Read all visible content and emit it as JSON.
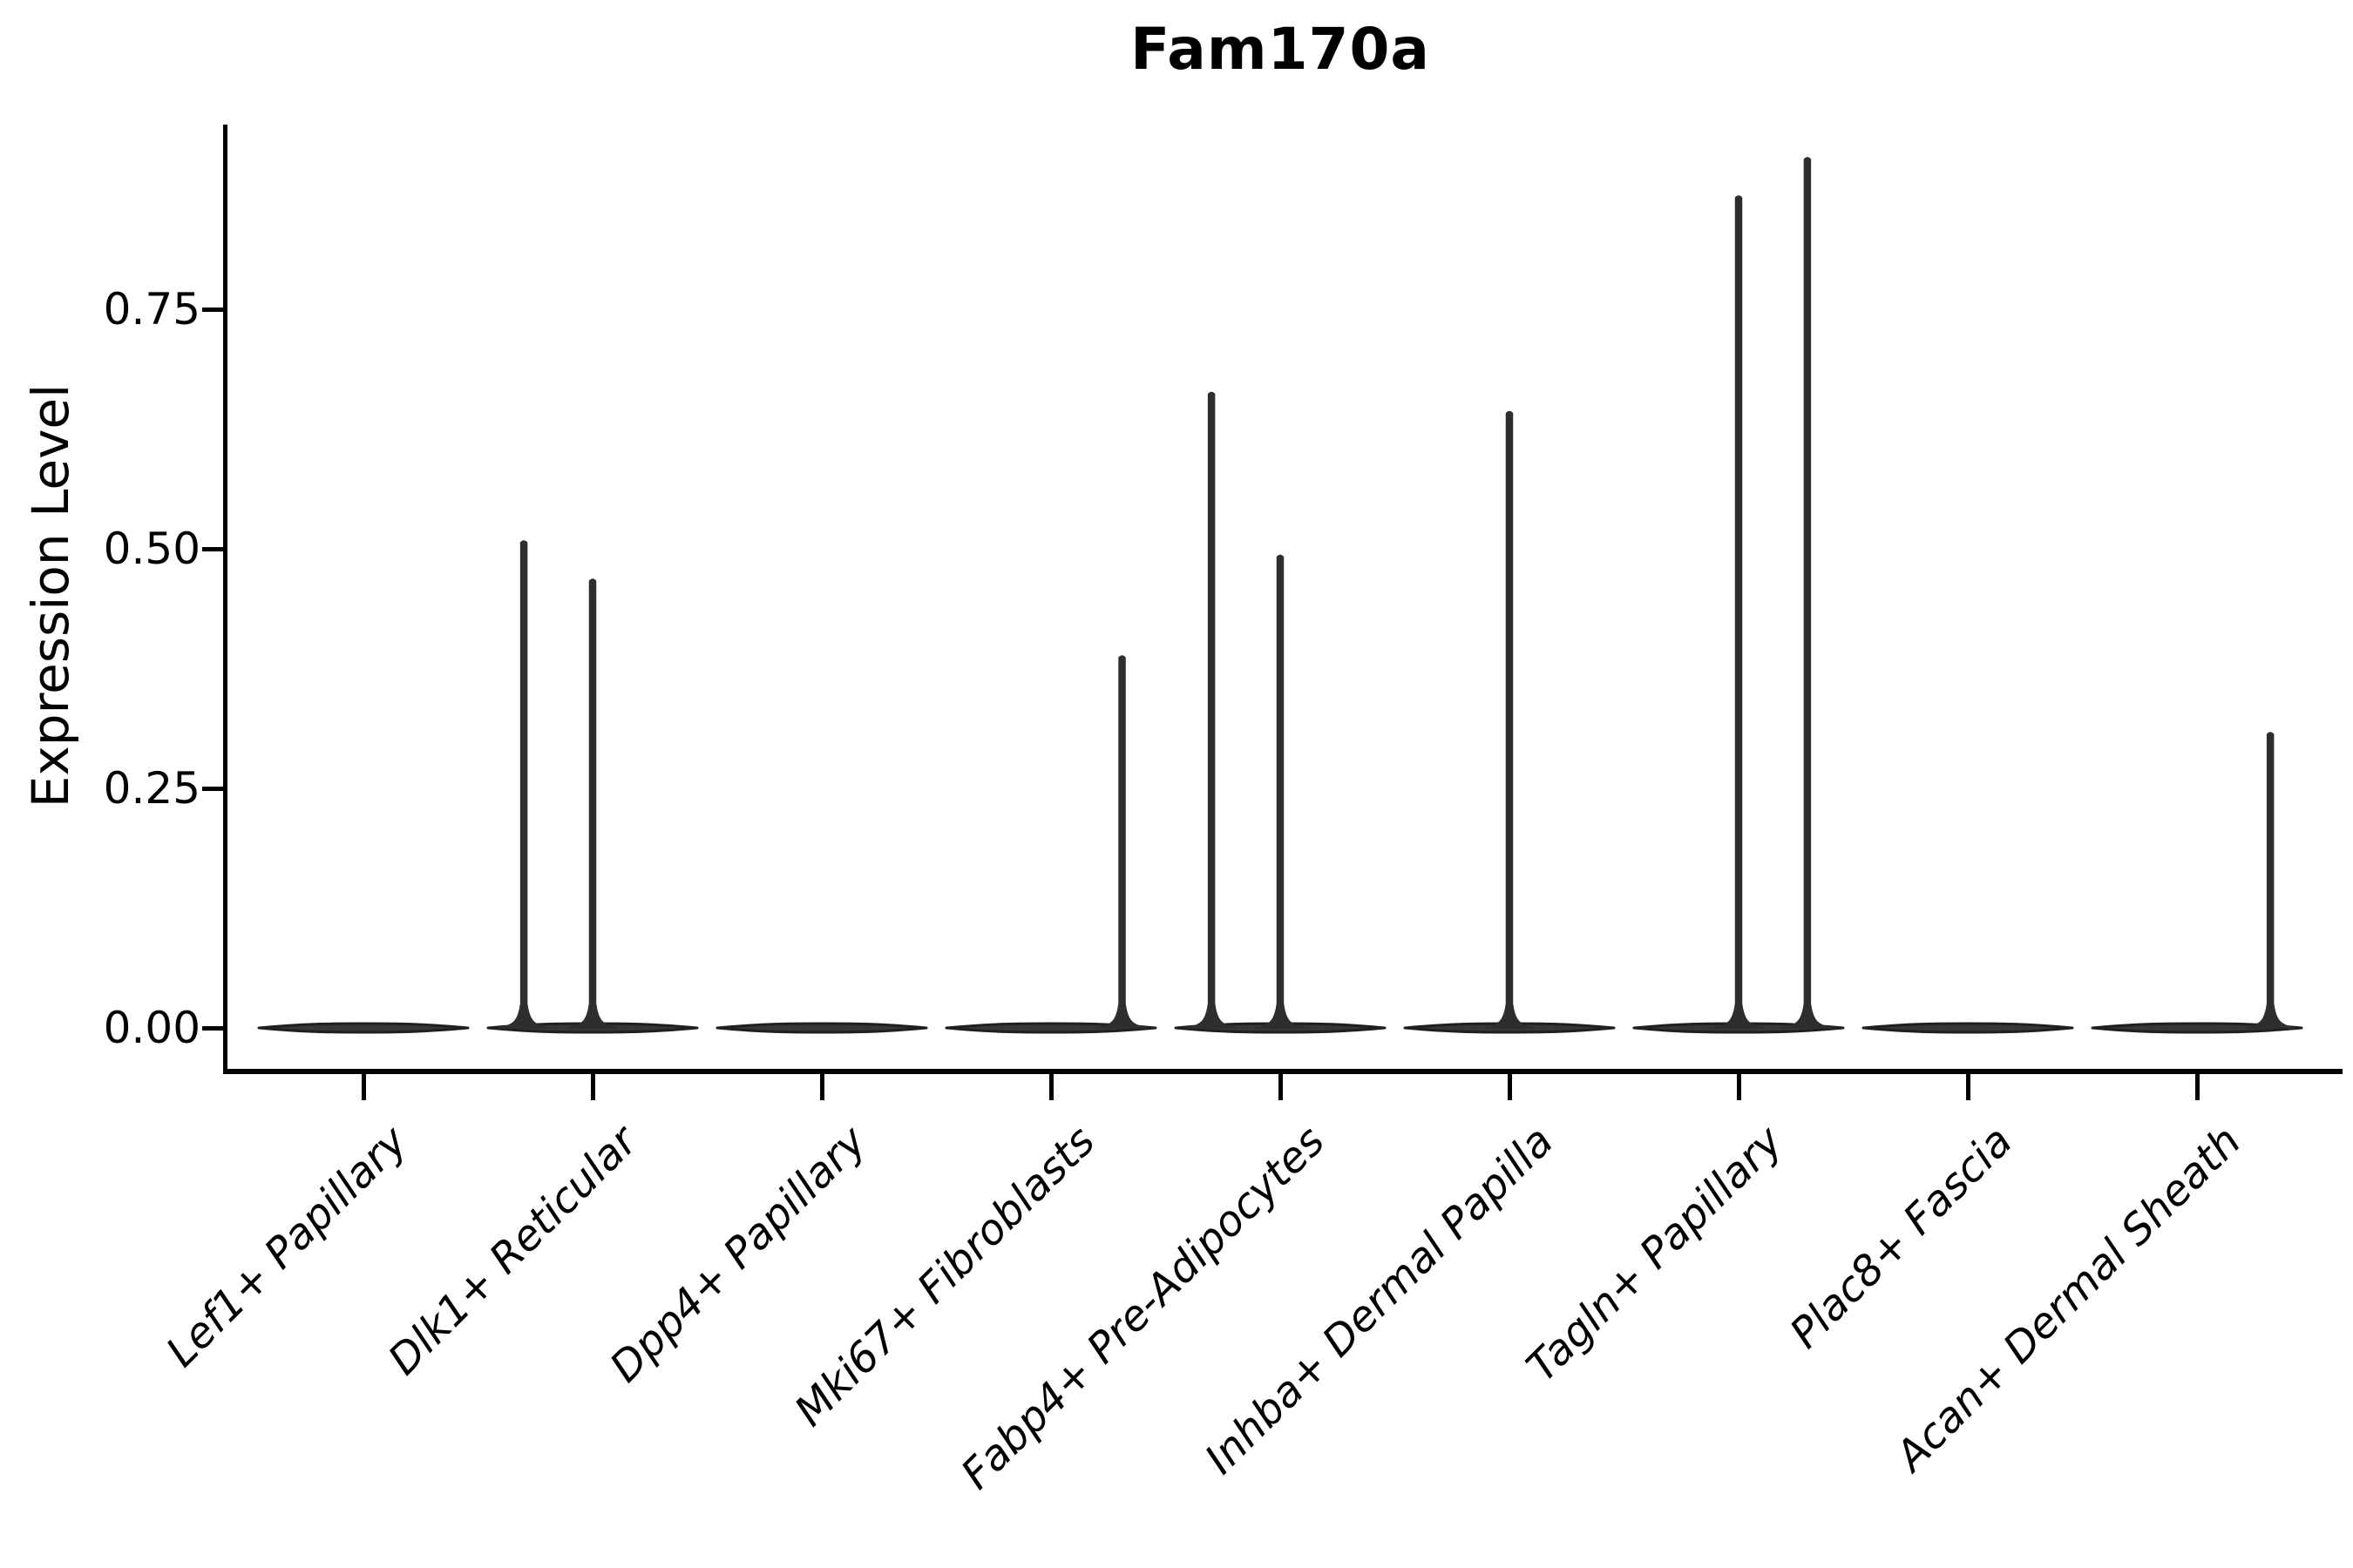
{
  "chart_data": {
    "type": "violin",
    "title": "Fam170a",
    "xlabel": "",
    "ylabel": "Expression Level",
    "grid": false,
    "legend_position": "none",
    "ylim": [
      -0.043,
      0.943
    ],
    "yticks": [
      {
        "value": 0.0,
        "label": "0.00"
      },
      {
        "value": 0.25,
        "label": "0.25"
      },
      {
        "value": 0.5,
        "label": "0.50"
      },
      {
        "value": 0.75,
        "label": "0.75"
      }
    ],
    "categories": [
      "Lef1+ Papillary",
      "Dlk1+ Reticular",
      "Dpp4+ Papillary",
      "Mki67+ Fibroblasts",
      "Fabp4+ Pre-Adipocytes",
      "Inhba+ Dermal Papilla",
      "Tagln+ Papillary",
      "Plac8+ Fascia",
      "Acan+ Dermal Sheath"
    ],
    "series": [
      {
        "name": "Lef1+ Papillary",
        "baseline_value": 0,
        "spikes": []
      },
      {
        "name": "Dlk1+ Reticular",
        "baseline_value": 0,
        "spikes": [
          {
            "offset_frac": -0.3,
            "value": 0.51
          },
          {
            "offset_frac": 0.0,
            "value": 0.47
          }
        ]
      },
      {
        "name": "Dpp4+ Papillary",
        "baseline_value": 0,
        "spikes": []
      },
      {
        "name": "Mki67+ Fibroblasts",
        "baseline_value": 0,
        "spikes": [
          {
            "offset_frac": 0.31,
            "value": 0.39
          }
        ]
      },
      {
        "name": "Fabp4+ Pre-Adipocytes",
        "baseline_value": 0,
        "spikes": [
          {
            "offset_frac": -0.3,
            "value": 0.665
          },
          {
            "offset_frac": 0.0,
            "value": 0.495
          }
        ]
      },
      {
        "name": "Inhba+ Dermal Papilla",
        "baseline_value": 0,
        "spikes": [
          {
            "offset_frac": 0.0,
            "value": 0.645
          }
        ]
      },
      {
        "name": "Tagln+ Papillary",
        "baseline_value": 0,
        "spikes": [
          {
            "offset_frac": 0.0,
            "value": 0.87
          },
          {
            "offset_frac": 0.3,
            "value": 0.91
          }
        ]
      },
      {
        "name": "Plac8+ Fascia",
        "baseline_value": 0,
        "spikes": []
      },
      {
        "name": "Acan+ Dermal Sheath",
        "baseline_value": 0,
        "spikes": [
          {
            "offset_frac": 0.32,
            "value": 0.31
          }
        ]
      }
    ]
  },
  "styles": {
    "background": "#ffffff",
    "text_color": "#000000",
    "axis_color": "#000000",
    "violin_fill": "#373737",
    "violin_stroke": "#1f1f1f",
    "spike_color": "#2e2e2e"
  }
}
